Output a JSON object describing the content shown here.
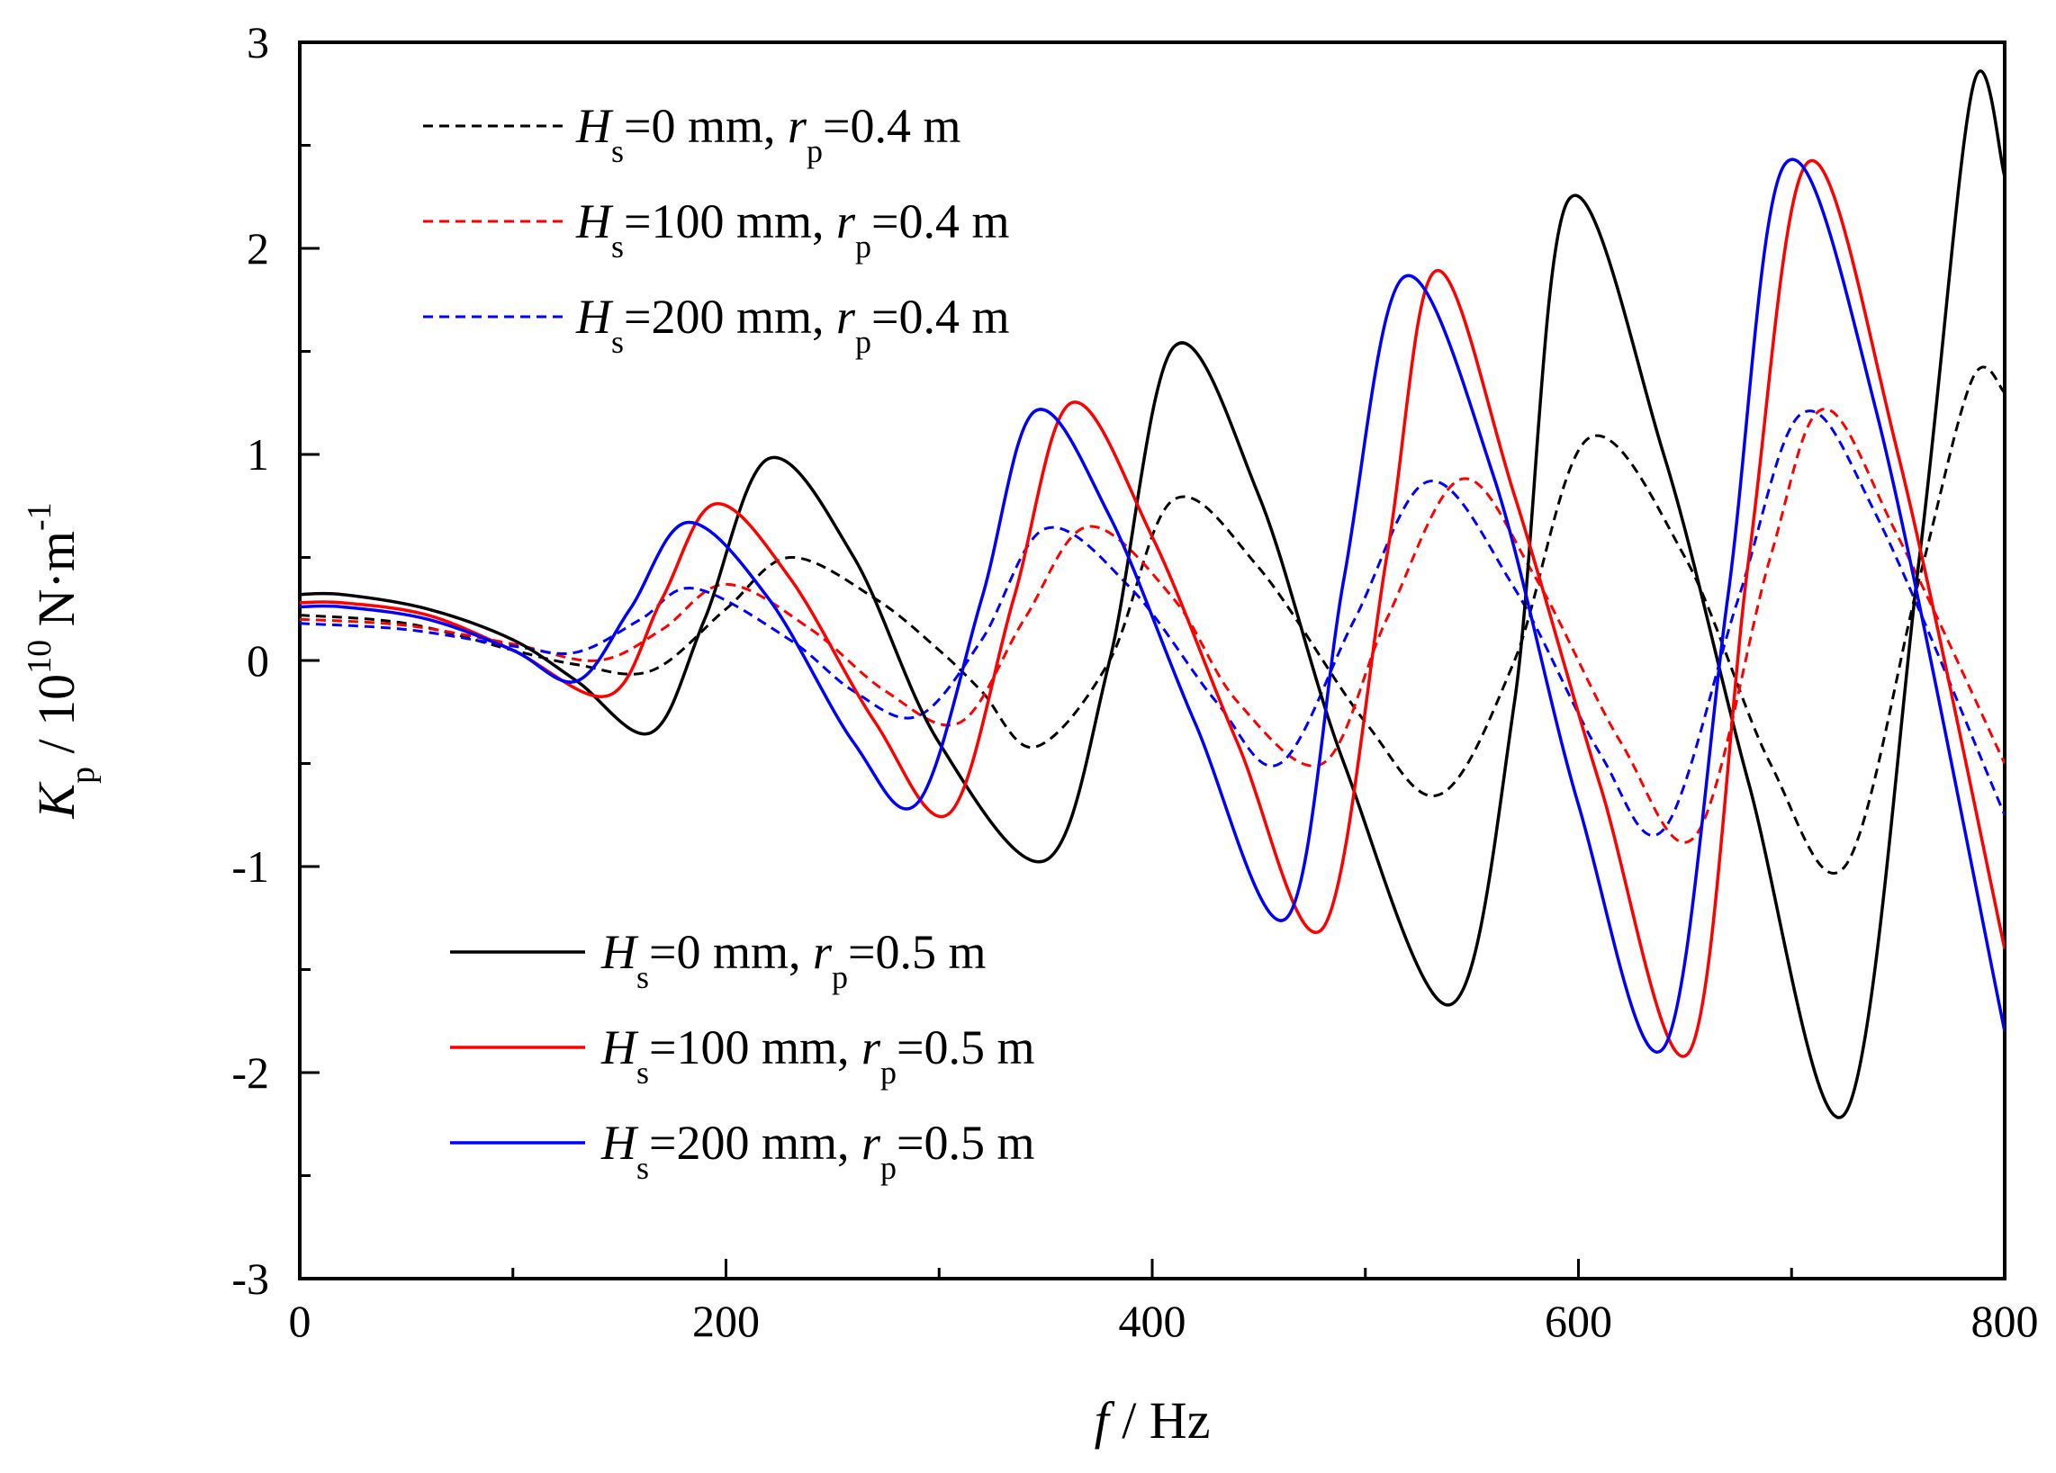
{
  "chart_data": {
    "type": "line",
    "xlabel": {
      "main": "f",
      "unit": " / Hz"
    },
    "ylabel": {
      "main": "K",
      "sub": "p",
      "unit1": " / 10",
      "exp": "10",
      "unit2": " N·m",
      "exp2": "-1"
    },
    "xlim": [
      0,
      800
    ],
    "ylim": [
      -3,
      3
    ],
    "xticks": [
      0,
      200,
      400,
      600,
      800
    ],
    "yticks": [
      -3,
      -2,
      -1,
      0,
      1,
      2,
      3
    ],
    "xtick_labels": [
      "0",
      "200",
      "400",
      "600",
      "800"
    ],
    "ytick_labels": [
      "-3",
      "-2",
      "-1",
      "0",
      "1",
      "2",
      "3"
    ],
    "grid": false,
    "legends": [
      {
        "placement": "top-left",
        "entries": [
          {
            "series": 0,
            "sym": "H",
            "sub": "s",
            "val": "=0 mm,",
            "sym2": "r",
            "sub2": "p",
            "val2": "=0.4 m"
          },
          {
            "series": 1,
            "sym": "H",
            "sub": "s",
            "val": "=100 mm,",
            "sym2": "r",
            "sub2": "p",
            "val2": "=0.4 m"
          },
          {
            "series": 2,
            "sym": "H",
            "sub": "s",
            "val": "=200 mm,",
            "sym2": "r",
            "sub2": "p",
            "val2": "=0.4 m"
          }
        ]
      },
      {
        "placement": "bottom-left",
        "entries": [
          {
            "series": 3,
            "sym": "H",
            "sub": "s",
            "val": "=0 mm,",
            "sym2": "r",
            "sub2": "p",
            "val2": "=0.5 m"
          },
          {
            "series": 4,
            "sym": "H",
            "sub": "s",
            "val": "=100 mm,",
            "sym2": "r",
            "sub2": "p",
            "val2": "=0.5 m"
          },
          {
            "series": 5,
            "sym": "H",
            "sub": "s",
            "val": "=200 mm,",
            "sym2": "r",
            "sub2": "p",
            "val2": "=0.5 m"
          }
        ]
      }
    ],
    "series": [
      {
        "name": "Hs=0 mm, rp=0.4 m",
        "color": "#000000",
        "style": "dashed",
        "x": [
          0,
          50,
          100,
          130,
          165,
          200,
          230,
          270,
          300,
          320,
          345,
          380,
          410,
          450,
          500,
          535,
          570,
          605,
          650,
          690,
          725,
          760,
          785,
          800
        ],
        "y": [
          0.22,
          0.18,
          0.05,
          -0.02,
          -0.05,
          0.25,
          0.5,
          0.3,
          0.05,
          -0.15,
          -0.42,
          0.0,
          0.78,
          0.45,
          -0.3,
          -0.65,
          0.0,
          1.08,
          0.5,
          -0.5,
          -1.0,
          0.4,
          1.37,
          1.3
        ]
      },
      {
        "name": "Hs=100 mm, rp=0.4 m",
        "color": "#ff0000",
        "style": "dashed",
        "x": [
          0,
          50,
          100,
          140,
          170,
          200,
          240,
          275,
          310,
          340,
          370,
          410,
          440,
          480,
          510,
          545,
          580,
          620,
          655,
          690,
          715,
          750,
          800
        ],
        "y": [
          0.2,
          0.17,
          0.08,
          0.0,
          0.15,
          0.37,
          0.15,
          -0.15,
          -0.3,
          0.2,
          0.65,
          0.3,
          -0.2,
          -0.5,
          0.2,
          0.88,
          0.4,
          -0.4,
          -0.85,
          0.5,
          1.22,
          0.6,
          -0.5
        ]
      },
      {
        "name": "Hs=200 mm, rp=0.4 m",
        "color": "#0000ff",
        "style": "dashed",
        "x": [
          0,
          50,
          100,
          130,
          160,
          185,
          230,
          260,
          290,
          320,
          350,
          390,
          430,
          460,
          495,
          530,
          570,
          610,
          640,
          675,
          705,
          740,
          800
        ],
        "y": [
          0.18,
          0.15,
          0.07,
          0.04,
          0.2,
          0.35,
          0.1,
          -0.15,
          -0.27,
          0.1,
          0.64,
          0.35,
          -0.2,
          -0.5,
          0.2,
          0.87,
          0.35,
          -0.45,
          -0.82,
          0.3,
          1.2,
          0.7,
          -0.75
        ]
      },
      {
        "name": "Hs=0 mm, rp=0.5 m",
        "color": "#000000",
        "style": "solid",
        "x": [
          0,
          20,
          60,
          100,
          130,
          165,
          190,
          220,
          260,
          300,
          350,
          380,
          410,
          450,
          490,
          540,
          570,
          595,
          640,
          680,
          725,
          760,
          785,
          800
        ],
        "y": [
          0.32,
          0.32,
          0.25,
          0.1,
          -0.1,
          -0.35,
          0.2,
          0.98,
          0.5,
          -0.4,
          -0.97,
          0.0,
          1.52,
          0.8,
          -0.5,
          -1.67,
          -0.2,
          2.23,
          1.0,
          -0.6,
          -2.2,
          0.5,
          2.78,
          2.35
        ]
      },
      {
        "name": "Hs=100 mm, rp=0.5 m",
        "color": "#ff0000",
        "style": "solid",
        "x": [
          0,
          20,
          60,
          100,
          145,
          170,
          195,
          230,
          270,
          305,
          335,
          362,
          400,
          440,
          480,
          510,
          533,
          570,
          610,
          652,
          680,
          708,
          750,
          800
        ],
        "y": [
          0.28,
          0.28,
          0.22,
          0.05,
          -0.17,
          0.3,
          0.76,
          0.4,
          -0.3,
          -0.74,
          0.3,
          1.25,
          0.6,
          -0.4,
          -1.3,
          0.5,
          1.89,
          0.8,
          -0.6,
          -1.9,
          0.5,
          2.42,
          1.0,
          -1.4
        ]
      },
      {
        "name": "Hs=200 mm, rp=0.5 m",
        "color": "#0000ff",
        "style": "solid",
        "x": [
          0,
          20,
          60,
          100,
          130,
          155,
          182,
          220,
          260,
          290,
          320,
          345,
          380,
          420,
          463,
          490,
          518,
          560,
          600,
          640,
          670,
          697,
          740,
          800
        ],
        "y": [
          0.26,
          0.26,
          0.2,
          0.05,
          -0.1,
          0.25,
          0.67,
          0.3,
          -0.4,
          -0.69,
          0.3,
          1.21,
          0.7,
          -0.3,
          -1.25,
          0.4,
          1.86,
          0.9,
          -0.7,
          -1.88,
          0.3,
          2.41,
          1.2,
          -1.8
        ]
      }
    ]
  }
}
